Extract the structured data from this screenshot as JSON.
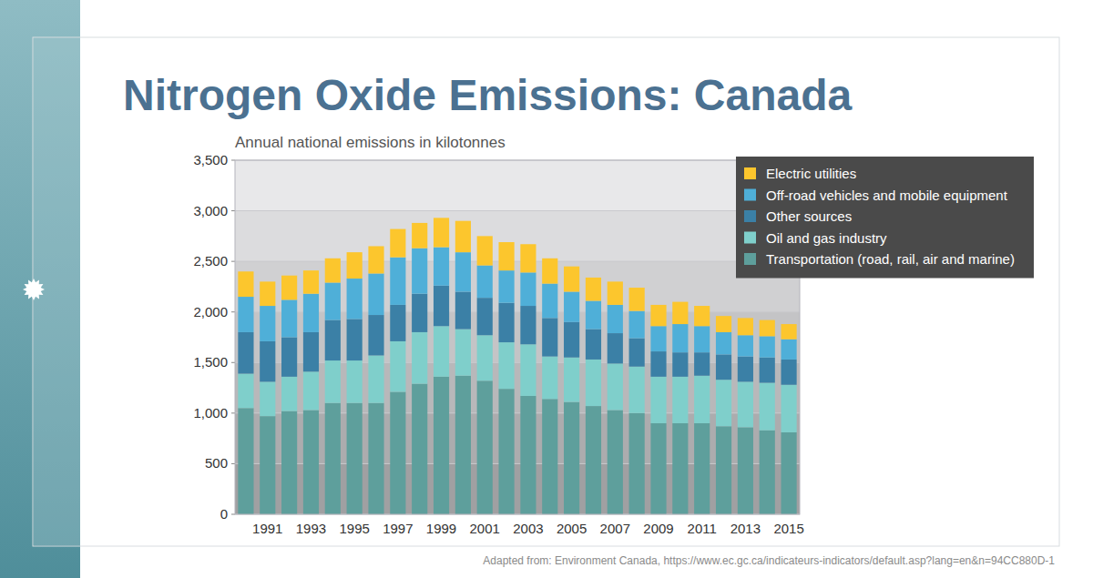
{
  "chart_data": {
    "type": "bar",
    "stacked": true,
    "title": "Nitrogen Oxide Emissions: Canada",
    "subtitle": "Annual national emissions in kilotonnes",
    "source": "Adapted from: Environment Canada, https://www.ec.gc.ca/indicateurs-indicators/default.asp?lang=en&n=94CC880D-1",
    "categories": [
      null,
      "1991",
      null,
      "1993",
      null,
      "1995",
      null,
      "1997",
      null,
      "1999",
      null,
      "2001",
      null,
      "2003",
      null,
      "2005",
      null,
      "2007",
      null,
      "2009",
      null,
      "2011",
      null,
      "2013",
      null,
      "2015"
    ],
    "series": [
      {
        "name": "Transportation (road, rail, air and marine)",
        "color": "#5e9f9c",
        "values": [
          1050,
          970,
          1020,
          1030,
          1100,
          1100,
          1100,
          1210,
          1290,
          1360,
          1370,
          1320,
          1240,
          1170,
          1140,
          1110,
          1070,
          1030,
          1000,
          900,
          900,
          900,
          870,
          860,
          830,
          810
        ]
      },
      {
        "name": "Oil and gas industry",
        "color": "#7fcfcb",
        "values": [
          340,
          340,
          340,
          380,
          420,
          420,
          470,
          500,
          510,
          500,
          460,
          450,
          460,
          510,
          420,
          440,
          460,
          460,
          460,
          460,
          460,
          470,
          460,
          450,
          470,
          470
        ]
      },
      {
        "name": "Other sources",
        "color": "#3b80a6",
        "values": [
          410,
          400,
          390,
          390,
          400,
          410,
          400,
          360,
          380,
          400,
          370,
          370,
          390,
          380,
          380,
          350,
          300,
          300,
          280,
          250,
          240,
          230,
          250,
          250,
          250,
          250
        ]
      },
      {
        "name": "Off-road vehicles and mobile equipment",
        "color": "#4fafd8",
        "values": [
          350,
          350,
          370,
          380,
          370,
          400,
          410,
          470,
          450,
          380,
          390,
          320,
          320,
          330,
          340,
          300,
          280,
          280,
          270,
          250,
          280,
          260,
          220,
          210,
          210,
          200
        ]
      },
      {
        "name": "Electric utilities",
        "color": "#fcc62d",
        "values": [
          250,
          240,
          240,
          230,
          240,
          260,
          270,
          280,
          250,
          290,
          310,
          290,
          280,
          280,
          250,
          250,
          230,
          230,
          230,
          210,
          220,
          200,
          160,
          170,
          160,
          150
        ]
      }
    ],
    "ylim": [
      0,
      3500
    ],
    "yticks": [
      0,
      500,
      {
        "value": 1000,
        "label": "1,000"
      },
      {
        "value": 1500,
        "label": "1,500"
      },
      {
        "value": 2000,
        "label": "2,000"
      },
      {
        "value": 2500,
        "label": "2,500"
      },
      {
        "value": 3000,
        "label": "3,000"
      },
      {
        "value": 3500,
        "label": "3,500"
      }
    ],
    "grid": true,
    "legend": "top-right"
  }
}
